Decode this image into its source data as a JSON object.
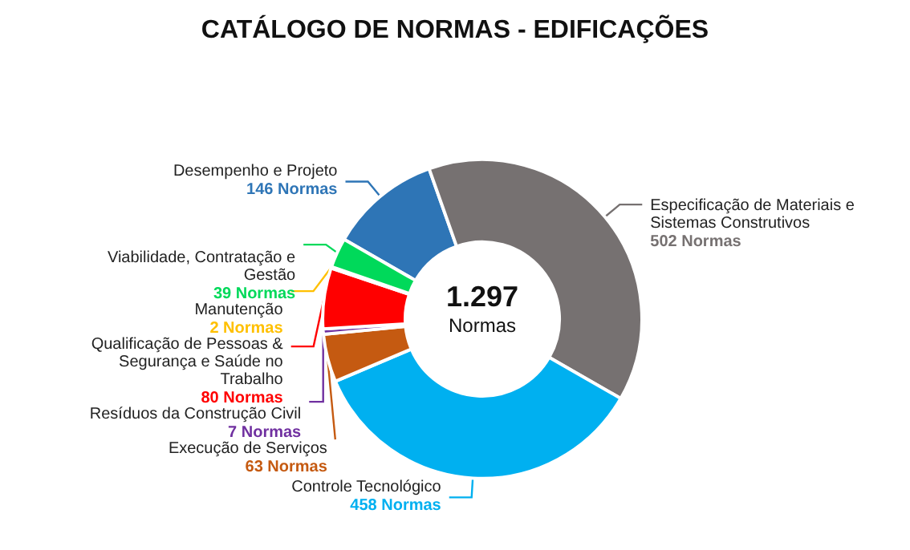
{
  "chart_data": {
    "type": "donut",
    "title": "CATÁLOGO DE NORMAS - EDIFICAÇÕES",
    "categories": [
      "Desempenho e Projeto",
      "Especificação de Materiais e Sistemas Construtivos",
      "Controle Tecnológico",
      "Execução de Serviços",
      "Resíduos da Construção Civil",
      "Qualificação de Pessoas & Segurança e Saúde no Trabalho",
      "Manutenção",
      "Viabilidade, Contratação e Gestão"
    ],
    "values": [
      146,
      502,
      458,
      63,
      7,
      80,
      2,
      39
    ],
    "value_labels": [
      "146 Normas",
      "502 Normas",
      "458 Normas",
      "63 Normas",
      "7 Normas",
      "80 Normas",
      "2 Normas",
      "39 Normas"
    ],
    "colors": [
      "#2e75b6",
      "#767171",
      "#00b0f0",
      "#c55a11",
      "#7030a0",
      "#ff0000",
      "#ffc000",
      "#00d95a"
    ],
    "annotations": [
      "1.297",
      "Normas"
    ],
    "legend": false
  }
}
